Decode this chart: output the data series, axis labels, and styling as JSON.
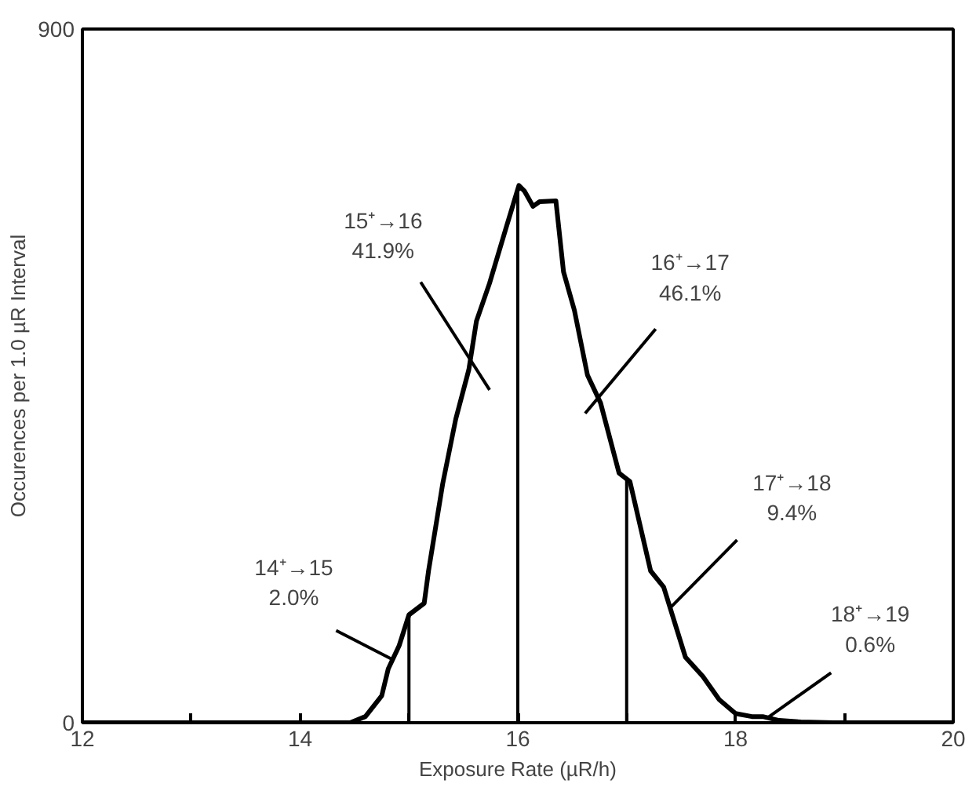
{
  "chart_data": {
    "type": "line",
    "xlabel": "Exposure Rate (µR/h)",
    "ylabel": "Occurences per 1.0 µR Interval",
    "x": [
      12,
      14.46,
      14.6,
      14.75,
      14.81,
      14.91,
      15.0,
      15.14,
      15.18,
      15.31,
      15.43,
      15.55,
      15.62,
      15.74,
      15.89,
      16.01,
      16.06,
      16.14,
      16.2,
      16.35,
      16.42,
      16.52,
      16.64,
      16.76,
      16.93,
      17.03,
      17.22,
      17.34,
      17.54,
      17.7,
      17.85,
      18.0,
      18.15,
      18.25,
      18.4,
      18.6,
      18.9,
      20
    ],
    "series": [
      {
        "color": "#000000",
        "values": [
          0,
          0,
          8,
          35,
          70,
          100,
          140,
          155,
          197,
          310,
          394,
          458,
          521,
          570,
          641,
          697,
          690,
          670,
          676,
          677,
          585,
          535,
          451,
          415,
          324,
          313,
          197,
          176,
          85,
          60,
          30,
          12,
          8,
          8,
          3,
          1,
          0,
          0
        ]
      }
    ],
    "xlim": [
      12,
      20
    ],
    "ylim": [
      0,
      900
    ],
    "xticks": [
      12,
      {
        "value": 13,
        "label": null
      },
      14,
      {
        "value": 15,
        "label": null
      },
      16,
      {
        "value": 17,
        "label": null
      },
      18,
      {
        "value": 19,
        "label": null
      },
      20
    ],
    "yticks": [
      0,
      900
    ],
    "ref_lines": [
      {
        "axis": "x",
        "value": 15,
        "color": "#000000"
      },
      {
        "axis": "x",
        "value": 16,
        "color": "#000000"
      },
      {
        "axis": "x",
        "value": 17,
        "color": "#000000"
      }
    ],
    "annotations": [
      {
        "text": "14⁺→15\n2.0%",
        "x": 14.85,
        "y": 82
      },
      "15⁺→16\n41.9%",
      "16⁺→17\n46.1%",
      {
        "text": "17⁺→18\n9.4%",
        "x": 17.4,
        "y": 149
      },
      {
        "text": "18⁺→19\n0.6%",
        "x": 18.3,
        "y": 7
      }
    ],
    "grid": false,
    "marker": "none",
    "line_style": "solid"
  }
}
